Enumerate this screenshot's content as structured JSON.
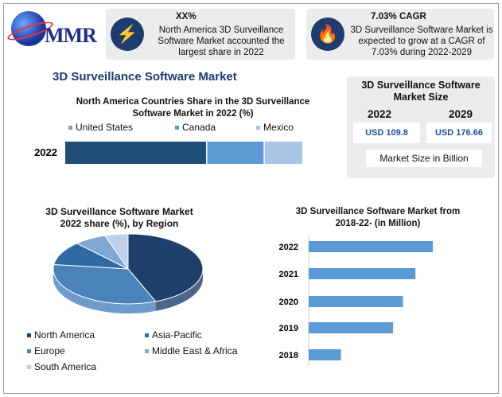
{
  "brand": {
    "logo_text": "MMR"
  },
  "highlights": [
    {
      "icon": "lightning-icon",
      "heading": "XX%",
      "lines": [
        "North America 3D Surveillance",
        "Software Market accounted the",
        "largest share in 2022"
      ]
    },
    {
      "icon": "flame-icon",
      "heading": "7.03% CAGR",
      "lines": [
        "3D Surveillance Software Market is",
        "expected to grow at a CAGR of",
        "7.03% during 2022-2029"
      ]
    }
  ],
  "main_title": "3D Surveillance Software Market",
  "market_size": {
    "title_line1": "3D Surveillance Software",
    "title_line2": "Market Size",
    "year_a": "2022",
    "year_b": "2029",
    "value_a": "USD 109.8",
    "value_b": "USD 176.66",
    "unit_label": "Market Size in Billion"
  },
  "chart_data": [
    {
      "type": "bar",
      "orientation": "horizontal-stacked",
      "title": "North America Countries Share in the 3D Surveillance Software Market in 2022 (%)",
      "title_line1": "North America Countries Share in the 3D Surveillance",
      "title_line2": "Software Market in 2022 (%)",
      "categories": [
        "2022"
      ],
      "series": [
        {
          "name": "United States",
          "values": [
            60
          ],
          "color": "#1f4e79"
        },
        {
          "name": "Canada",
          "values": [
            24
          ],
          "color": "#5b9bd5"
        },
        {
          "name": "Mexico",
          "values": [
            16
          ],
          "color": "#a9c6e8"
        }
      ],
      "legend_position": "top"
    },
    {
      "type": "pie",
      "title": "3D Surveillance Software Market 2022 share (%), by Region",
      "title_line1": "3D Surveillance Software Market",
      "title_line2": "2022 share (%), by Region",
      "labels": [
        "North America",
        "Asia-Pacific",
        "Europe",
        "Middle East & Africa",
        "South America"
      ],
      "values": [
        44,
        11,
        33,
        7,
        5
      ],
      "colors": [
        "#1f3f6b",
        "#2f6aa6",
        "#4a82bc",
        "#7fa7d4",
        "#bcd0e8"
      ],
      "legend_position": "bottom"
    },
    {
      "type": "bar",
      "orientation": "horizontal",
      "title": "3D Surveillance Software Market from 2018-22- (in Million)",
      "title_line1": "3D Surveillance Software Market from",
      "title_line2": "2018-22- (in Million)",
      "categories": [
        "2022",
        "2021",
        "2020",
        "2019",
        "2018"
      ],
      "values": [
        100,
        86,
        76,
        68,
        26
      ],
      "color": "#5b9bd5"
    }
  ]
}
